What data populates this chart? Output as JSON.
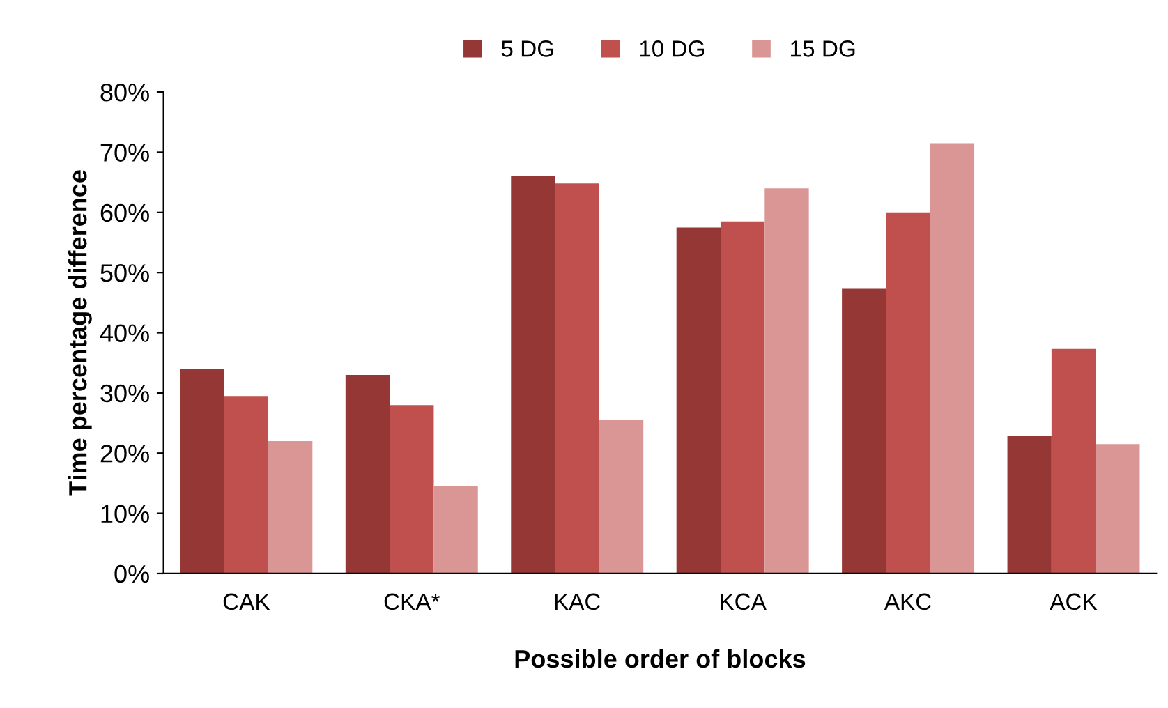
{
  "chart_data": {
    "type": "bar",
    "xlabel": "Possible order of blocks",
    "ylabel": "Time percentage difference",
    "categories": [
      "CAK",
      "CKA*",
      "KAC",
      "KCA",
      "AKC",
      "ACK"
    ],
    "series": [
      {
        "name": "5 DG",
        "color": "#953735",
        "values": [
          34,
          33,
          66,
          57.5,
          47.3,
          22.8
        ]
      },
      {
        "name": "10 DG",
        "color": "#c0504d",
        "values": [
          29.5,
          28,
          64.8,
          58.5,
          60,
          37.3
        ]
      },
      {
        "name": "15 DG",
        "color": "#d99694",
        "values": [
          22,
          14.5,
          25.5,
          64,
          71.5,
          21.5
        ]
      }
    ],
    "ylim": [
      0,
      80
    ],
    "yticks": [
      {
        "value": 0,
        "label": "0%"
      },
      {
        "value": 10,
        "label": "10%"
      },
      {
        "value": 20,
        "label": "20%"
      },
      {
        "value": 30,
        "label": "30%"
      },
      {
        "value": 40,
        "label": "40%"
      },
      {
        "value": 50,
        "label": "50%"
      },
      {
        "value": 60,
        "label": "60%"
      },
      {
        "value": 70,
        "label": "70%"
      },
      {
        "value": 80,
        "label": "80%"
      }
    ],
    "grid": false,
    "legend": "top"
  }
}
